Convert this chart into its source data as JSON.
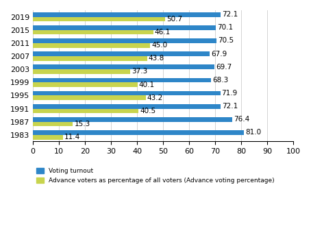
{
  "years": [
    "2019",
    "2015",
    "2011",
    "2007",
    "2003",
    "1999",
    "1995",
    "1991",
    "1987",
    "1983"
  ],
  "voting_turnout": [
    72.1,
    70.1,
    70.5,
    67.9,
    69.7,
    68.3,
    71.9,
    72.1,
    76.4,
    81.0
  ],
  "advance_voting": [
    50.7,
    46.1,
    45.0,
    43.8,
    37.3,
    40.1,
    43.2,
    40.5,
    15.3,
    11.4
  ],
  "color_turnout": "#2E86C8",
  "color_advance": "#C8D44E",
  "xlim": [
    0,
    100
  ],
  "xticks": [
    0,
    10,
    20,
    30,
    40,
    50,
    60,
    70,
    80,
    90,
    100
  ],
  "legend_turnout": "Voting turnout",
  "legend_advance": "Advance voters as percentage of all voters (Advance voting percentage)",
  "bar_height": 0.35,
  "label_fontsize": 7.5,
  "tick_fontsize": 8
}
